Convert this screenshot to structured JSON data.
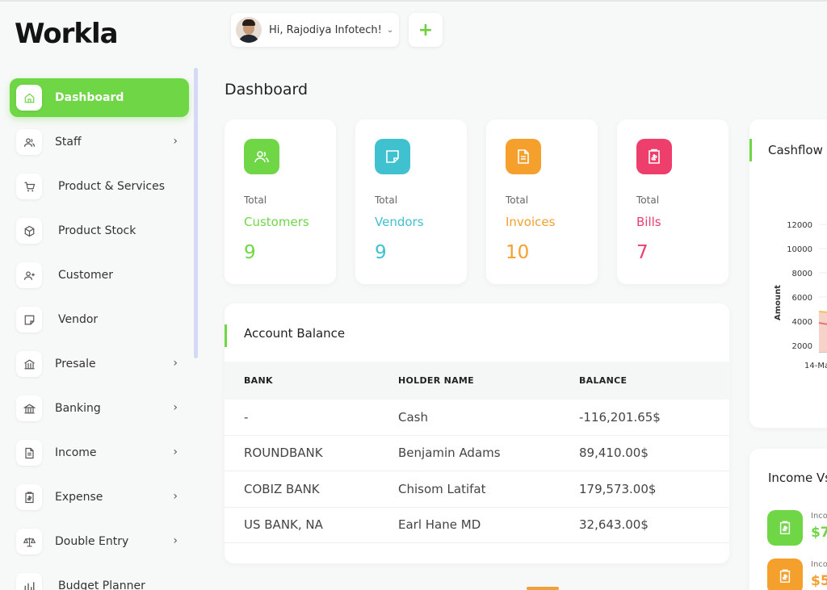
{
  "brand": {
    "logo_text": "Workla"
  },
  "header": {
    "greeting": "Hi, Rajodiya Infotech!",
    "add_label": "+"
  },
  "sidebar": {
    "items": [
      {
        "label": "Dashboard",
        "icon": "home-icon",
        "active": true,
        "has_submenu": false
      },
      {
        "label": "Staff",
        "icon": "users-icon",
        "active": false,
        "has_submenu": true
      },
      {
        "label": "Product & Services",
        "icon": "cart-icon",
        "active": false,
        "has_submenu": false
      },
      {
        "label": "Product Stock",
        "icon": "box-icon",
        "active": false,
        "has_submenu": false
      },
      {
        "label": "Customer",
        "icon": "user-plus-icon",
        "active": false,
        "has_submenu": false
      },
      {
        "label": "Vendor",
        "icon": "note-icon",
        "active": false,
        "has_submenu": false
      },
      {
        "label": "Presale",
        "icon": "building-icon",
        "active": false,
        "has_submenu": true
      },
      {
        "label": "Banking",
        "icon": "bank-icon",
        "active": false,
        "has_submenu": true
      },
      {
        "label": "Income",
        "icon": "file-icon",
        "active": false,
        "has_submenu": true
      },
      {
        "label": "Expense",
        "icon": "receipt-icon",
        "active": false,
        "has_submenu": true
      },
      {
        "label": "Double Entry",
        "icon": "scale-icon",
        "active": false,
        "has_submenu": true
      },
      {
        "label": "Budget Planner",
        "icon": "chart-icon",
        "active": false,
        "has_submenu": false
      }
    ]
  },
  "main": {
    "title": "Dashboard",
    "stats": [
      {
        "total": "Total",
        "name": "Customers",
        "value": "9",
        "color": "#6fd646",
        "icon": "users-icon"
      },
      {
        "total": "Total",
        "name": "Vendors",
        "value": "9",
        "color": "#3fc1cf",
        "icon": "note-icon"
      },
      {
        "total": "Total",
        "name": "Invoices",
        "value": "10",
        "color": "#f59f2d",
        "icon": "file-icon"
      },
      {
        "total": "Total",
        "name": "Bills",
        "value": "7",
        "color": "#ee3e6b",
        "icon": "receipt-icon"
      }
    ],
    "account_balance": {
      "title": "Account Balance",
      "columns": [
        "BANK",
        "HOLDER NAME",
        "BALANCE"
      ],
      "rows": [
        [
          "-",
          "Cash",
          "-116,201.65$"
        ],
        [
          "ROUNDBANK",
          "Benjamin Adams",
          "89,410.00$"
        ],
        [
          "COBIZ BANK",
          "Chisom Latifat",
          "179,573.00$"
        ],
        [
          "US BANK, NA",
          "Earl Hane MD",
          "32,643.00$"
        ]
      ]
    },
    "cashflow": {
      "title": "Cashflow",
      "ylabel": "Amount",
      "yticks": [
        "12000",
        "10000",
        "8000",
        "6000",
        "4000",
        "2000"
      ],
      "xtick": "14-Ma"
    },
    "income_vs": {
      "title": "Income Vs",
      "items": [
        {
          "label": "Inco",
          "value": "$7",
          "color": "#6fd646"
        },
        {
          "label": "Inco",
          "value": "$5",
          "color": "#f59f2d"
        }
      ]
    }
  }
}
